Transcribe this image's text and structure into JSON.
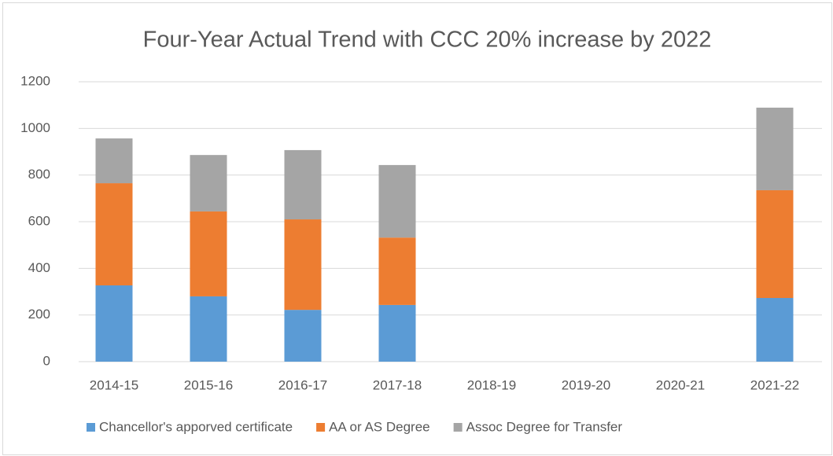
{
  "chart_data": {
    "type": "stacked_bar",
    "title": "Four-Year Actual Trend with CCC 20% increase by 2022",
    "categories": [
      "2014-15",
      "2015-16",
      "2016-17",
      "2017-18",
      "2018-19",
      "2019-20",
      "2020-21",
      "2021-22"
    ],
    "series": [
      {
        "name": "Chancellor's apporved certificate",
        "color": "#5b9bd5",
        "values": [
          327,
          280,
          222,
          243,
          null,
          null,
          null,
          273
        ]
      },
      {
        "name": "AA or AS Degree",
        "color": "#ed7d31",
        "values": [
          438,
          364,
          388,
          289,
          null,
          null,
          null,
          462
        ]
      },
      {
        "name": "Assoc Degree for Transfer",
        "color": "#a5a5a5",
        "values": [
          192,
          242,
          297,
          311,
          null,
          null,
          null,
          354
        ]
      }
    ],
    "ylim": [
      0,
      1200
    ],
    "yticks": [
      0,
      200,
      400,
      600,
      800,
      1000,
      1200
    ],
    "grid": true,
    "legend": "bottom"
  }
}
